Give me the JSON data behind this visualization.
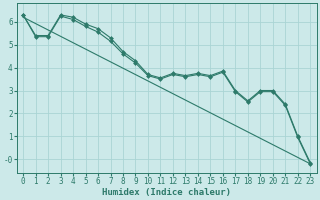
{
  "background_color": "#cce9e9",
  "grid_color": "#aad4d4",
  "line_color": "#2d7a6a",
  "marker_color": "#2d7a6a",
  "xlabel": "Humidex (Indice chaleur)",
  "xlabel_fontsize": 6.5,
  "tick_fontsize": 5.5,
  "ylim": [
    -0.6,
    6.8
  ],
  "xlim": [
    -0.5,
    23.5
  ],
  "yticks": [
    0,
    1,
    2,
    3,
    4,
    5,
    6
  ],
  "ytick_labels": [
    "-0",
    "1",
    "2",
    "3",
    "4",
    "5",
    "6"
  ],
  "xticks": [
    0,
    1,
    2,
    3,
    4,
    5,
    6,
    7,
    8,
    9,
    10,
    11,
    12,
    13,
    14,
    15,
    16,
    17,
    18,
    19,
    20,
    21,
    22,
    23
  ],
  "series": [
    {
      "x": [
        0,
        1,
        2,
        3,
        4,
        5,
        6,
        7,
        8,
        9,
        10,
        11,
        12,
        13,
        14,
        15,
        16,
        17,
        18,
        19,
        20,
        21,
        22,
        23
      ],
      "y": [
        6.3,
        5.4,
        5.4,
        6.3,
        6.2,
        5.9,
        5.7,
        5.3,
        4.7,
        4.3,
        3.7,
        3.55,
        3.75,
        3.65,
        3.75,
        3.65,
        3.85,
        3.0,
        2.55,
        3.0,
        3.0,
        2.4,
        1.0,
        -0.15
      ],
      "has_markers": true
    },
    {
      "x": [
        0,
        1,
        2,
        3,
        4,
        5,
        6,
        7,
        8,
        9,
        10,
        11,
        12,
        13,
        14,
        15,
        16,
        17,
        18,
        19,
        20,
        21,
        22,
        23
      ],
      "y": [
        6.3,
        5.35,
        5.35,
        6.25,
        6.1,
        5.8,
        5.55,
        5.15,
        4.6,
        4.2,
        3.65,
        3.5,
        3.7,
        3.6,
        3.7,
        3.6,
        3.8,
        2.95,
        2.5,
        2.95,
        2.95,
        2.35,
        0.95,
        -0.2
      ],
      "has_markers": true
    },
    {
      "x": [
        0,
        23
      ],
      "y": [
        6.2,
        -0.2
      ],
      "has_markers": false
    }
  ]
}
